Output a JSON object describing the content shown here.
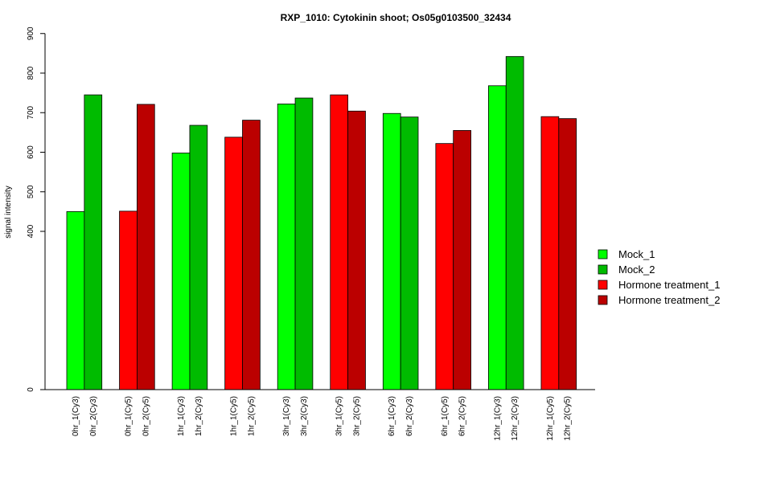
{
  "chart_data": {
    "type": "bar",
    "title": "RXP_1010: Cytokinin shoot; Os05g0103500_32434",
    "ylabel": "signal intensity",
    "xlabel": "",
    "yticks": [
      0,
      400,
      500,
      600,
      700,
      800,
      900
    ],
    "y_axis_note": "axis is compressed between 0 and 400",
    "series": [
      {
        "name": "Mock_1",
        "color": "#00ff00"
      },
      {
        "name": "Mock_2",
        "color": "#00bb00"
      },
      {
        "name": "Hormone treatment_1",
        "color": "#ff0000"
      },
      {
        "name": "Hormone treatment_2",
        "color": "#bb0000"
      }
    ],
    "bars": [
      {
        "label": "0hr_1(Cy3)",
        "value": 450,
        "series": 0
      },
      {
        "label": "0hr_2(Cy3)",
        "value": 745,
        "series": 1
      },
      {
        "label": "0hr_1(Cy5)",
        "value": 451,
        "series": 2
      },
      {
        "label": "0hr_2(Cy5)",
        "value": 721,
        "series": 3
      },
      {
        "label": "1hr_1(Cy3)",
        "value": 598,
        "series": 0
      },
      {
        "label": "1hr_2(Cy3)",
        "value": 668,
        "series": 1
      },
      {
        "label": "1hr_1(Cy5)",
        "value": 638,
        "series": 2
      },
      {
        "label": "1hr_2(Cy5)",
        "value": 681,
        "series": 3
      },
      {
        "label": "3hr_1(Cy3)",
        "value": 722,
        "series": 0
      },
      {
        "label": "3hr_2(Cy3)",
        "value": 737,
        "series": 1
      },
      {
        "label": "3hr_1(Cy5)",
        "value": 745,
        "series": 2
      },
      {
        "label": "3hr_2(Cy5)",
        "value": 704,
        "series": 3
      },
      {
        "label": "6hr_1(Cy3)",
        "value": 698,
        "series": 0
      },
      {
        "label": "6hr_2(Cy3)",
        "value": 689,
        "series": 1
      },
      {
        "label": "6hr_1(Cy5)",
        "value": 622,
        "series": 2
      },
      {
        "label": "6hr_2(Cy5)",
        "value": 655,
        "series": 3
      },
      {
        "label": "12hr_1(Cy3)",
        "value": 768,
        "series": 0
      },
      {
        "label": "12hr_2(Cy3)",
        "value": 842,
        "series": 1
      },
      {
        "label": "12hr_1(Cy5)",
        "value": 690,
        "series": 2
      },
      {
        "label": "12hr_2(Cy5)",
        "value": 685,
        "series": 3
      }
    ],
    "legend_position": "right"
  }
}
